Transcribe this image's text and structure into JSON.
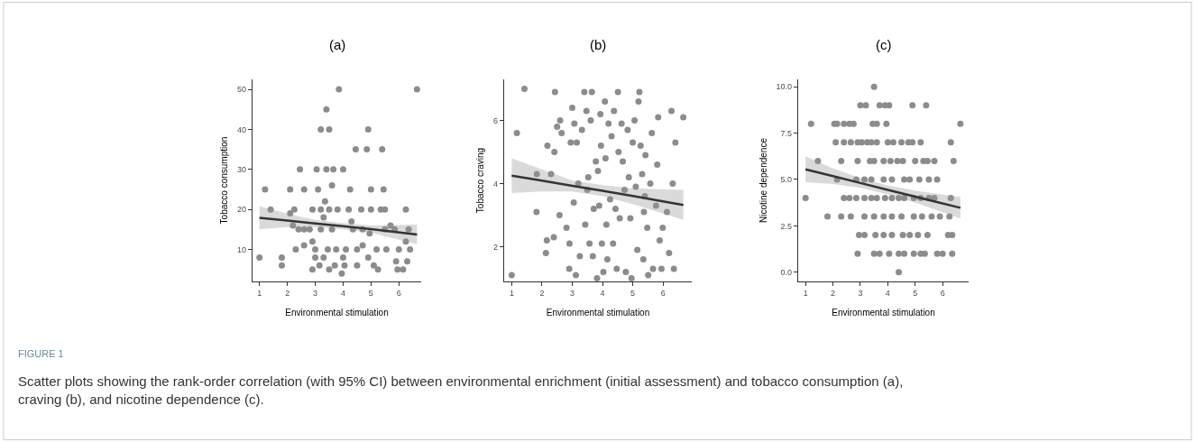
{
  "chart_data": [
    {
      "type": "scatter",
      "title": "(a)",
      "xlabel": "Environmental stimulation",
      "ylabel": "Tobacco consumption",
      "xlim": [
        0.75,
        6.8
      ],
      "ylim": [
        2,
        52.5
      ],
      "xticks": [
        1,
        2,
        3,
        4,
        5,
        6
      ],
      "yticks": [
        10,
        20,
        30,
        40,
        50
      ],
      "marker": "circle",
      "annotations": [
        "FIGURE 1",
        "Scatter plots showing the rank-order correlation (with 95% CI) between environmental enrichment (initial assessment) and tobacco consumption (a), craving (b), and nicotine dependence (c)."
      ],
      "series": [
        {
          "color": "#8c8c8c",
          "x": [
            1.0,
            1.2,
            1.4,
            1.8,
            1.8,
            2.1,
            2.1,
            2.2,
            2.25,
            2.45,
            2.4,
            2.6,
            2.6,
            2.6,
            2.3,
            2.8,
            2.9,
            2.9,
            2.9,
            3.0,
            3.0,
            3.05,
            3.1,
            3.2,
            3.15,
            3.2,
            3.2,
            3.3,
            3.3,
            3.35,
            3.4,
            3.4,
            3.5,
            3.45,
            3.5,
            3.5,
            3.6,
            3.6,
            3.65,
            3.7,
            3.75,
            3.8,
            3.85,
            3.95,
            4.0,
            4.0,
            4.05,
            4.1,
            4.2,
            4.25,
            4.3,
            4.35,
            4.45,
            4.5,
            4.5,
            4.65,
            4.7,
            4.7,
            4.9,
            4.85,
            4.9,
            5.0,
            4.95,
            5.0,
            5.1,
            5.2,
            5.25,
            5.35,
            5.4,
            5.45,
            5.5,
            5.5,
            5.55,
            5.7,
            5.85,
            5.95,
            5.9,
            6.0,
            6.15,
            6.25,
            6.25,
            6.3,
            6.4,
            6.35,
            6.65
          ],
          "values": [
            8,
            25,
            20,
            8,
            6,
            25,
            19,
            16,
            20,
            30,
            15,
            15,
            25,
            11,
            10,
            15,
            20,
            12,
            5,
            8,
            10,
            30,
            25,
            40,
            6,
            20,
            15,
            8,
            18,
            22,
            30,
            45,
            40,
            10,
            5,
            20,
            26,
            15,
            30,
            6,
            10,
            20,
            50,
            4,
            30,
            8,
            6,
            10,
            20,
            25,
            17,
            15,
            35,
            10,
            6,
            20,
            11,
            15,
            40,
            35,
            8,
            25,
            14,
            20,
            6,
            10,
            5,
            20,
            35,
            25,
            15,
            20,
            10,
            16,
            15,
            5,
            7,
            10,
            5,
            20,
            12,
            7,
            10,
            15,
            50
          ]
        },
        {
          "type": "line",
          "color": "#000000",
          "marker": "none",
          "x": [
            1,
            2,
            3,
            4,
            5,
            6.65
          ],
          "values": [
            17.9,
            17.2,
            16.5,
            15.8,
            15.1,
            13.7
          ],
          "lower": [
            15.0,
            15.6,
            15.6,
            15.0,
            14.2,
            11.3
          ],
          "upper": [
            20.8,
            18.9,
            17.4,
            16.6,
            16.0,
            16.2
          ]
        }
      ]
    },
    {
      "type": "scatter",
      "title": "(b)",
      "xlabel": "Environmental stimulation",
      "ylabel": "Tobacco craving",
      "xlim": [
        0.75,
        6.95
      ],
      "ylim": [
        0.9,
        7.3
      ],
      "xticks": [
        1,
        2,
        3,
        4,
        5,
        6
      ],
      "yticks": [
        2,
        4,
        6
      ],
      "marker": "circle",
      "series": [
        {
          "color": "#8c8c8c",
          "x": [
            1.0,
            1.17,
            1.42,
            1.82,
            1.83,
            2.13,
            2.16,
            2.18,
            2.3,
            2.39,
            2.43,
            2.41,
            2.5,
            2.6,
            2.58,
            2.65,
            2.81,
            2.9,
            2.91,
            2.95,
            3.0,
            3.05,
            3.07,
            3.12,
            3.15,
            3.2,
            3.25,
            3.32,
            3.4,
            3.43,
            3.47,
            3.5,
            3.53,
            3.57,
            3.61,
            3.65,
            3.68,
            3.71,
            3.78,
            3.82,
            3.85,
            3.89,
            3.93,
            3.95,
            3.98,
            4.03,
            4.08,
            4.1,
            4.13,
            4.16,
            4.2,
            4.25,
            4.3,
            4.35,
            4.38,
            4.43,
            4.47,
            4.51,
            4.53,
            4.57,
            4.63,
            4.67,
            4.73,
            4.77,
            4.83,
            4.87,
            4.92,
            4.96,
            5.0,
            5.06,
            5.1,
            5.15,
            5.19,
            5.22,
            5.26,
            5.31,
            5.35,
            5.37,
            5.4,
            5.42,
            5.48,
            5.51,
            5.58,
            5.63,
            5.67,
            5.77,
            5.81,
            5.84,
            5.89,
            5.95,
            5.99,
            6.13,
            6.2,
            6.28,
            6.32,
            6.36,
            6.41,
            6.67
          ],
          "values": [
            1.1,
            5.6,
            7.0,
            3.1,
            4.3,
            1.8,
            2.2,
            5.2,
            4.3,
            2.3,
            6.9,
            5.0,
            5.8,
            6.0,
            3.0,
            5.6,
            2.6,
            1.3,
            2.1,
            5.3,
            6.4,
            3.4,
            5.9,
            1.1,
            5.3,
            4.0,
            1.7,
            5.7,
            6.9,
            2.7,
            6.3,
            3.8,
            4.2,
            2.1,
            6.0,
            6.9,
            1.7,
            3.2,
            4.7,
            1.0,
            4.4,
            3.3,
            6.2,
            5.2,
            2.1,
            1.2,
            6.6,
            4.8,
            2.7,
            1.6,
            5.9,
            3.5,
            5.5,
            2.1,
            6.3,
            3.2,
            1.3,
            6.9,
            5.0,
            2.9,
            5.9,
            4.7,
            3.8,
            1.2,
            5.7,
            4.2,
            2.9,
            1.0,
            5.3,
            6.0,
            3.9,
            1.9,
            6.6,
            6.9,
            5.2,
            4.3,
            1.6,
            3.1,
            3.6,
            4.9,
            2.6,
            1.1,
            4.0,
            5.6,
            1.3,
            3.3,
            4.6,
            6.1,
            2.2,
            1.3,
            2.6,
            3.1,
            1.8,
            6.3,
            4.0,
            1.3,
            5.3,
            6.1
          ]
        },
        {
          "type": "line",
          "color": "#000000",
          "marker": "none",
          "x": [
            1,
            2,
            3,
            4,
            5,
            6.67
          ],
          "values": [
            4.25,
            4.09,
            3.93,
            3.77,
            3.61,
            3.32
          ],
          "lower": [
            3.7,
            3.75,
            3.75,
            3.6,
            3.35,
            2.85
          ],
          "upper": [
            4.8,
            4.45,
            4.1,
            3.95,
            3.85,
            3.8
          ]
        }
      ]
    },
    {
      "type": "scatter",
      "title": "(c)",
      "xlabel": "Environmental stimulation",
      "ylabel": "Nicotine dependence",
      "xlim": [
        0.73,
        6.95
      ],
      "ylim": [
        -0.5,
        10.4
      ],
      "xticks": [
        1,
        2,
        3,
        4,
        5,
        6
      ],
      "yticks": [
        {
          "value": 0,
          "label": "0.0"
        },
        {
          "value": 2.5,
          "label": "2.5"
        },
        {
          "value": 5,
          "label": "5.0"
        },
        {
          "value": 7.5,
          "label": "7.5"
        },
        {
          "value": 10,
          "label": "10.0"
        }
      ],
      "marker": "circle",
      "series": [
        {
          "color": "#8c8c8c",
          "x": [
            3.5,
            3.0,
            3.2,
            3.7,
            3.9,
            4.05,
            4.9,
            5.4,
            1.2,
            2.05,
            2.15,
            2.4,
            2.6,
            2.75,
            3.45,
            3.6,
            3.95,
            6.65,
            2.1,
            2.4,
            2.65,
            2.9,
            3.05,
            3.25,
            3.4,
            3.6,
            4.0,
            4.2,
            4.5,
            4.75,
            4.9,
            5.2,
            6.3,
            1.45,
            2.3,
            2.9,
            3.35,
            3.5,
            3.85,
            4.1,
            4.35,
            4.55,
            5.0,
            5.3,
            5.45,
            5.7,
            6.4,
            2.15,
            2.85,
            3.15,
            3.4,
            3.85,
            4.15,
            4.6,
            4.8,
            5.15,
            5.5,
            5.8,
            1.0,
            2.4,
            2.6,
            2.85,
            3.15,
            3.4,
            3.6,
            3.9,
            4.15,
            4.4,
            4.6,
            4.95,
            5.2,
            5.5,
            5.7,
            6.3,
            1.8,
            2.3,
            2.65,
            3.15,
            3.5,
            3.85,
            4.15,
            4.5,
            4.95,
            5.25,
            5.6,
            5.9,
            6.25,
            2.95,
            3.15,
            3.55,
            3.85,
            4.15,
            4.55,
            4.8,
            5.1,
            5.45,
            6.2,
            6.35,
            2.9,
            3.5,
            3.7,
            4.05,
            4.4,
            4.6,
            4.95,
            5.2,
            5.35,
            5.8,
            6.0,
            6.35,
            4.4
          ],
          "values": [
            10,
            9,
            9,
            9,
            9,
            9,
            9,
            9,
            8,
            8,
            8,
            8,
            8,
            8,
            8,
            8,
            8,
            8,
            7,
            7,
            7,
            7,
            7,
            7,
            7,
            7,
            7,
            7,
            7,
            7,
            7,
            7,
            7,
            6,
            6,
            6,
            6,
            6,
            6,
            6,
            6,
            6,
            6,
            6,
            6,
            6,
            6,
            5,
            5,
            5,
            5,
            5,
            5,
            5,
            5,
            5,
            5,
            5,
            4,
            4,
            4,
            4,
            4,
            4,
            4,
            4,
            4,
            4,
            4,
            4,
            4,
            4,
            4,
            4,
            3,
            3,
            3,
            3,
            3,
            3,
            3,
            3,
            3,
            3,
            3,
            3,
            3,
            2,
            2,
            2,
            2,
            2,
            2,
            2,
            2,
            2,
            2,
            2,
            1,
            1,
            1,
            1,
            1,
            1,
            1,
            1,
            1,
            1,
            1,
            1,
            0
          ]
        },
        {
          "type": "line",
          "color": "#000000",
          "marker": "none",
          "x": [
            1,
            2,
            3,
            4,
            5,
            6.65
          ],
          "values": [
            5.55,
            5.18,
            4.81,
            4.44,
            4.07,
            3.47
          ],
          "lower": [
            4.85,
            4.75,
            4.55,
            4.2,
            3.75,
            2.9
          ],
          "upper": [
            6.25,
            5.6,
            5.07,
            4.68,
            4.4,
            4.05
          ]
        }
      ]
    }
  ]
}
